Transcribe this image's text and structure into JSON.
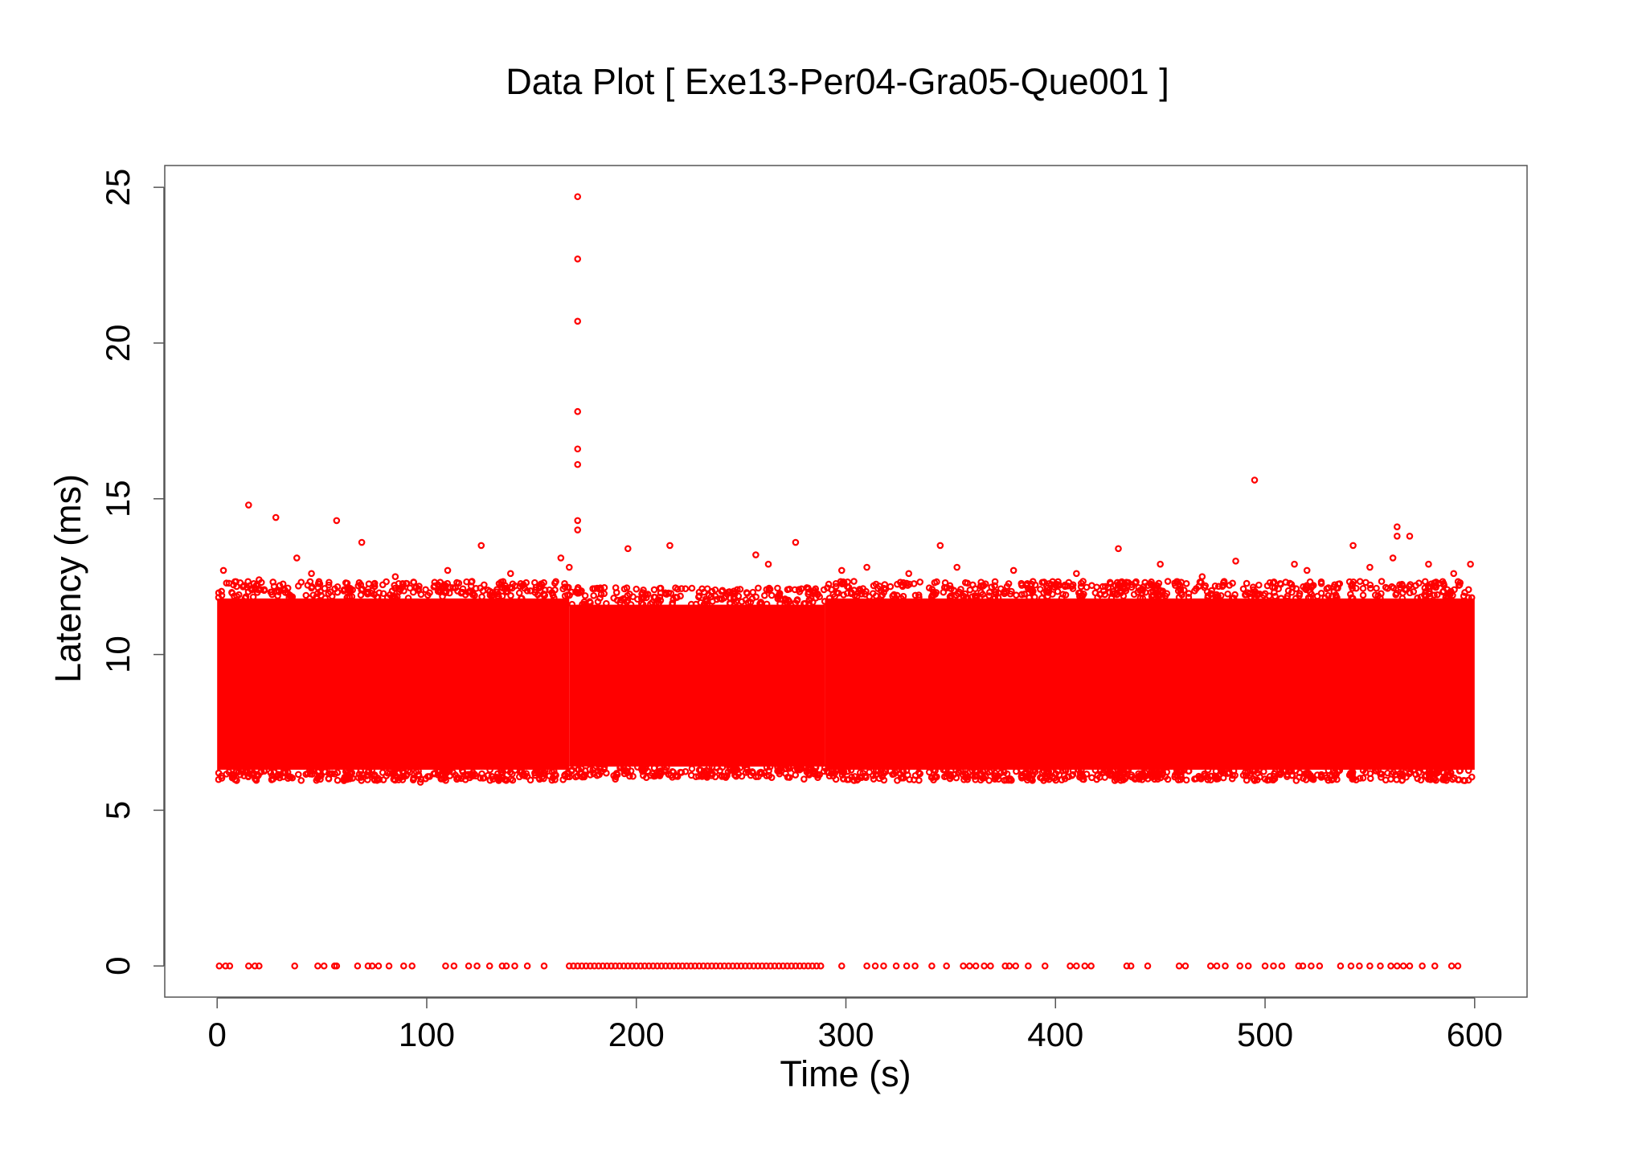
{
  "chart_data": {
    "type": "scatter",
    "title": "Data Plot [ Exe13-Per04-Gra05-Que001 ]",
    "xlabel": "Time (s)",
    "ylabel": "Latency (ms)",
    "xlim": [
      -25,
      625
    ],
    "ylim": [
      -1,
      25.7
    ],
    "xticks": [
      0,
      100,
      200,
      300,
      400,
      500,
      600
    ],
    "yticks": [
      0,
      5,
      10,
      15,
      20,
      25
    ],
    "xtick_labels": [
      "0",
      "100",
      "200",
      "300",
      "400",
      "500",
      "600"
    ],
    "ytick_labels": [
      "0",
      "5",
      "10",
      "15",
      "20",
      "25"
    ],
    "grid": false,
    "legend": "none",
    "marker": "open-circle",
    "series": [
      {
        "color": "#ff0000",
        "dense_band": [
          {
            "x_range": [
              0,
              168
            ],
            "y_range": [
              6.3,
              11.8
            ]
          },
          {
            "x_range": [
              168,
              290
            ],
            "y_range": [
              6.4,
              11.6
            ]
          },
          {
            "x_range": [
              290,
              600
            ],
            "y_range": [
              6.3,
              11.8
            ]
          }
        ],
        "points": [
          [
            15,
            14.8
          ],
          [
            28,
            14.4
          ],
          [
            57,
            14.3
          ],
          [
            69,
            13.6
          ],
          [
            38,
            13.1
          ],
          [
            126,
            13.5
          ],
          [
            172,
            24.7
          ],
          [
            172,
            22.7
          ],
          [
            172,
            20.7
          ],
          [
            172,
            17.8
          ],
          [
            172,
            16.6
          ],
          [
            172,
            16.1
          ],
          [
            172,
            14.3
          ],
          [
            172,
            14.0
          ],
          [
            164,
            13.1
          ],
          [
            168,
            12.8
          ],
          [
            196,
            13.4
          ],
          [
            216,
            13.5
          ],
          [
            257,
            13.2
          ],
          [
            276,
            13.6
          ],
          [
            263,
            12.9
          ],
          [
            298,
            12.7
          ],
          [
            310,
            12.8
          ],
          [
            345,
            13.5
          ],
          [
            353,
            12.8
          ],
          [
            430,
            13.4
          ],
          [
            450,
            12.9
          ],
          [
            486,
            13.0
          ],
          [
            495,
            15.6
          ],
          [
            514,
            12.9
          ],
          [
            542,
            13.5
          ],
          [
            561,
            13.1
          ],
          [
            563,
            14.1
          ],
          [
            563,
            13.8
          ],
          [
            569,
            13.8
          ],
          [
            578,
            12.9
          ],
          [
            598,
            12.9
          ],
          [
            3,
            12.7
          ],
          [
            20,
            12.4
          ],
          [
            45,
            12.6
          ],
          [
            85,
            12.5
          ],
          [
            110,
            12.7
          ],
          [
            140,
            12.6
          ],
          [
            200,
            12.1
          ],
          [
            230,
            12.0
          ],
          [
            330,
            12.6
          ],
          [
            380,
            12.7
          ],
          [
            410,
            12.6
          ],
          [
            470,
            12.5
          ],
          [
            520,
            12.7
          ],
          [
            550,
            12.8
          ],
          [
            590,
            12.6
          ],
          [
            97,
            5.9
          ],
          [
            190,
            6.0
          ],
          [
            280,
            6.0
          ],
          [
            350,
            6.1
          ],
          [
            440,
            6.0
          ],
          [
            560,
            6.0
          ]
        ],
        "zero_points_x": [
          1,
          4,
          6,
          15,
          18,
          20,
          37,
          48,
          51,
          56,
          57,
          67,
          72,
          74,
          77,
          82,
          89,
          93,
          109,
          113,
          120,
          124,
          130,
          136,
          138,
          142,
          148,
          156,
          168,
          170,
          172,
          174,
          176,
          178,
          180,
          182,
          184,
          186,
          188,
          190,
          192,
          194,
          196,
          198,
          200,
          202,
          204,
          206,
          208,
          210,
          212,
          214,
          216,
          218,
          220,
          222,
          224,
          226,
          228,
          230,
          232,
          234,
          236,
          238,
          240,
          242,
          244,
          246,
          248,
          250,
          252,
          254,
          256,
          258,
          260,
          262,
          264,
          266,
          268,
          270,
          272,
          274,
          276,
          278,
          280,
          282,
          284,
          286,
          288,
          298,
          310,
          314,
          318,
          324,
          329,
          333,
          341,
          348,
          356,
          359,
          362,
          366,
          369,
          376,
          378,
          381,
          387,
          395,
          407,
          410,
          414,
          417,
          434,
          436,
          444,
          459,
          462,
          474,
          477,
          481,
          488,
          492,
          500,
          504,
          508,
          516,
          518,
          522,
          526,
          536,
          541,
          545,
          550,
          555,
          560,
          563,
          566,
          569,
          575,
          581,
          589,
          592
        ]
      }
    ]
  }
}
